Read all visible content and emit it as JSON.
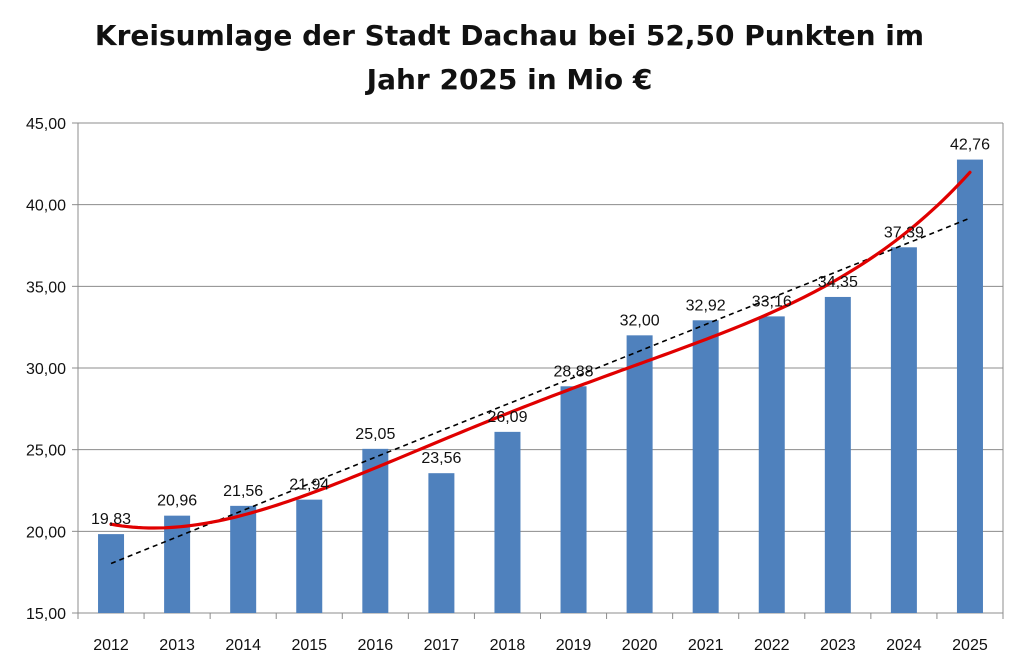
{
  "chart_data": {
    "type": "bar",
    "title_line1": "Kreisumlage der Stadt Dachau bei 52,50 Punkten im",
    "title_line2": "Jahr 2025 in Mio €",
    "xlabel": "",
    "ylabel": "",
    "categories": [
      "2012",
      "2013",
      "2014",
      "2015",
      "2016",
      "2017",
      "2018",
      "2019",
      "2020",
      "2021",
      "2022",
      "2023",
      "2024",
      "2025"
    ],
    "values": [
      19.83,
      20.96,
      21.56,
      21.94,
      25.05,
      23.56,
      26.09,
      28.88,
      32.0,
      32.92,
      33.16,
      34.35,
      37.39,
      42.76
    ],
    "value_labels": [
      "19,83",
      "20,96",
      "21,56",
      "21,94",
      "25,05",
      "23,56",
      "26,09",
      "28,88",
      "32,00",
      "32,92",
      "33,16",
      "34,35",
      "37,39",
      "42,76"
    ],
    "ylim": [
      15,
      45
    ],
    "yticks": [
      "15,00",
      "20,00",
      "25,00",
      "30,00",
      "35,00",
      "40,00",
      "45,00"
    ],
    "ytick_values": [
      15,
      20,
      25,
      30,
      35,
      40,
      45
    ],
    "grid": true,
    "legend": "none",
    "overlays": [
      {
        "type": "linear-trendline",
        "style": "dashed",
        "color": "#000000"
      },
      {
        "type": "polynomial-trendline",
        "style": "solid",
        "color": "#e00000"
      }
    ],
    "colors": {
      "bar": "#4f81bd",
      "grid": "#8c8c8c",
      "trend_linear": "#000000",
      "trend_poly": "#e00000"
    }
  }
}
